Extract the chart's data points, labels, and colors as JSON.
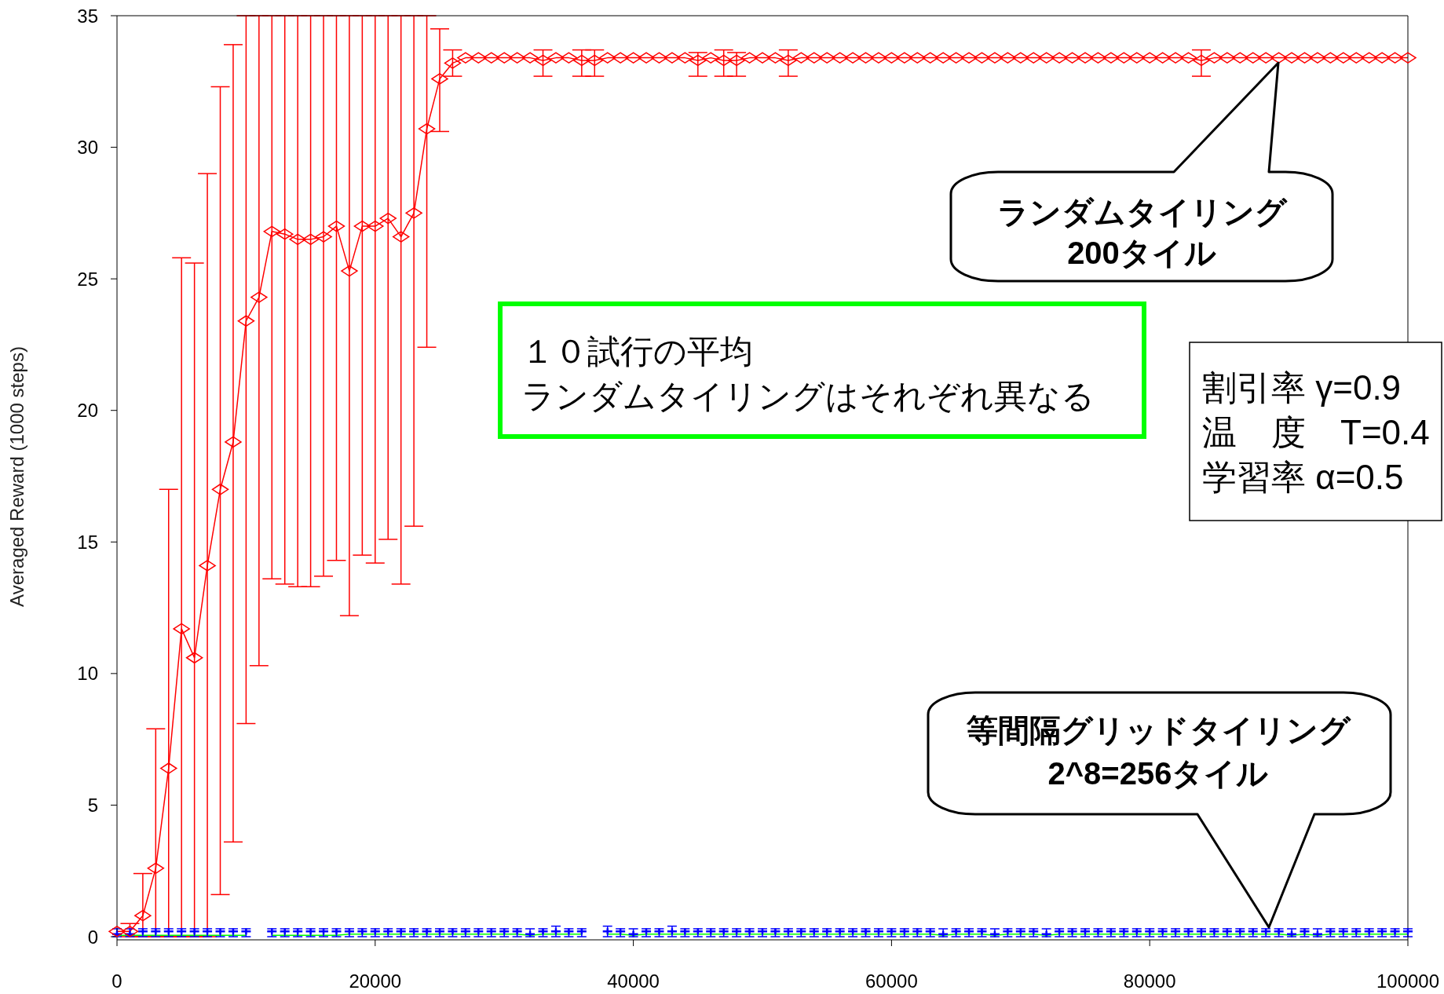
{
  "chart_data": {
    "type": "line",
    "ylabel": "Averaged Reward (1000 steps)",
    "x": [
      0,
      1000,
      2000,
      3000,
      4000,
      5000,
      6000,
      7000,
      8000,
      9000,
      10000,
      11000,
      12000,
      13000,
      14000,
      15000,
      16000,
      17000,
      18000,
      19000,
      20000,
      21000,
      22000,
      23000,
      24000,
      25000,
      26000,
      27000,
      28000,
      29000,
      30000,
      31000,
      32000,
      33000,
      34000,
      35000,
      36000,
      37000,
      38000,
      39000,
      40000,
      41000,
      42000,
      43000,
      44000,
      45000,
      46000,
      47000,
      48000,
      49000,
      50000,
      51000,
      52000,
      53000,
      54000,
      55000,
      56000,
      57000,
      58000,
      59000,
      60000,
      61000,
      62000,
      63000,
      64000,
      65000,
      66000,
      67000,
      68000,
      69000,
      70000,
      71000,
      72000,
      73000,
      74000,
      75000,
      76000,
      77000,
      78000,
      79000,
      80000,
      81000,
      82000,
      83000,
      84000,
      85000,
      86000,
      87000,
      88000,
      89000,
      90000,
      91000,
      92000,
      93000,
      94000,
      95000,
      96000,
      97000,
      98000,
      99000,
      100000
    ],
    "xlim": [
      0,
      100000
    ],
    "xticks": [
      0,
      20000,
      40000,
      60000,
      80000,
      100000
    ],
    "ylim": [
      0,
      35
    ],
    "yticks": [
      0,
      5,
      10,
      15,
      20,
      25,
      30,
      35
    ],
    "series": [
      {
        "color": "#ff0000",
        "marker": "diamond",
        "values": [
          0.2,
          0.2,
          0.8,
          2.6,
          6.4,
          11.7,
          10.6,
          14.1,
          17,
          18.8,
          23.4,
          24.3,
          26.8,
          26.7,
          26.5,
          26.5,
          26.6,
          27,
          25.3,
          27,
          27,
          27.3,
          26.6,
          27.5,
          30.7,
          32.6,
          33.2,
          33.4,
          33.4,
          33.4,
          33.4,
          33.4,
          33.4,
          33.3,
          33.4,
          33.4,
          33.3,
          33.3,
          33.4,
          33.4,
          33.4,
          33.4,
          33.4,
          33.4,
          33.4,
          33.3,
          33.4,
          33.3,
          33.3,
          33.4,
          33.4,
          33.4,
          33.3,
          33.4,
          33.4,
          33.4,
          33.4,
          33.4,
          33.4,
          33.4,
          33.4,
          33.4,
          33.4,
          33.4,
          33.4,
          33.4,
          33.4,
          33.4,
          33.4,
          33.4,
          33.4,
          33.4,
          33.4,
          33.4,
          33.4,
          33.4,
          33.4,
          33.4,
          33.4,
          33.4,
          33.4,
          33.4,
          33.4,
          33.4,
          33.3,
          33.4,
          33.4,
          33.4,
          33.4,
          33.4,
          33.4,
          33.4,
          33.4,
          33.4,
          33.4,
          33.4,
          33.4,
          33.4,
          33.4,
          33.4,
          33.4
        ],
        "errors": [
          null,
          [
            0,
            0.5
          ],
          [
            0,
            2.4
          ],
          [
            0,
            7.9
          ],
          [
            0,
            17
          ],
          [
            0,
            25.8
          ],
          [
            0,
            25.6
          ],
          [
            0,
            29
          ],
          [
            1.6,
            32.3
          ],
          [
            3.6,
            33.9
          ],
          [
            8.1,
            35
          ],
          [
            10.3,
            35
          ],
          [
            13.6,
            35
          ],
          [
            13.4,
            35
          ],
          [
            13.3,
            35
          ],
          [
            13.3,
            35
          ],
          [
            13.7,
            35
          ],
          [
            14.3,
            35
          ],
          [
            12.2,
            35
          ],
          [
            14.5,
            35
          ],
          [
            14.2,
            35
          ],
          [
            15.1,
            35
          ],
          [
            13.4,
            35
          ],
          [
            15.6,
            35
          ],
          [
            22.4,
            35
          ],
          [
            30.6,
            34.5
          ],
          [
            32.7,
            33.7
          ],
          null,
          null,
          null,
          null,
          null,
          null,
          [
            32.7,
            33.7
          ],
          null,
          null,
          [
            32.7,
            33.7
          ],
          [
            32.7,
            33.7
          ],
          null,
          null,
          null,
          null,
          null,
          null,
          null,
          [
            32.7,
            33.6
          ],
          null,
          [
            32.7,
            33.7
          ],
          [
            32.7,
            33.6
          ],
          null,
          null,
          null,
          [
            32.7,
            33.7
          ],
          null,
          null,
          null,
          null,
          null,
          null,
          null,
          null,
          null,
          null,
          null,
          null,
          null,
          null,
          null,
          null,
          null,
          null,
          null,
          null,
          null,
          null,
          null,
          null,
          null,
          null,
          null,
          null,
          null,
          null,
          null,
          [
            32.7,
            33.7
          ],
          null,
          null,
          null,
          null,
          null,
          null,
          null,
          null,
          null,
          null,
          null,
          null,
          null,
          null,
          null,
          null
        ]
      },
      {
        "color": "#00ff00",
        "marker": "none",
        "values": [
          0.05,
          0.05,
          0.05,
          0.05,
          0.05,
          0.05,
          0.05,
          0.05,
          0.05,
          0.05,
          0.05,
          null,
          0.05,
          0.05,
          0.05,
          0.05,
          0.05,
          0.05,
          0.1,
          0.1,
          0.1,
          0.1,
          0.1,
          0.1,
          0.1,
          0.1,
          0.1,
          0.1,
          0.1,
          0.1,
          0.1,
          0.1,
          0.05,
          0.1,
          0.1,
          0.1,
          0.1,
          null,
          0.1,
          0.1,
          0.05,
          0.1,
          0.1,
          0.1,
          0.1,
          0.1,
          0.1,
          0.1,
          0.1,
          0.1,
          0.1,
          0.1,
          0.1,
          0.1,
          0.1,
          0.1,
          0.1,
          0.1,
          0.1,
          0.1,
          0.1,
          0.1,
          0.1,
          0.1,
          0.05,
          0.1,
          0.1,
          0.1,
          0.05,
          0.1,
          0.1,
          0.1,
          0.05,
          0.1,
          0.1,
          0.1,
          0.1,
          0.1,
          0.1,
          0.1,
          0.1,
          0.1,
          0.1,
          0.1,
          0.1,
          0.1,
          0.1,
          0.1,
          0.1,
          0.1,
          0.1,
          0.05,
          0.1,
          0.05,
          0.1,
          0.1,
          0.1,
          0.1,
          0.1,
          0.1,
          0.1
        ]
      },
      {
        "type": "scatter",
        "color": "#0000ff",
        "marker": "cross",
        "values": [
          0.1,
          0.1,
          0.2,
          0.2,
          0.2,
          0.2,
          0.2,
          0.2,
          0.2,
          0.2,
          0.2,
          null,
          0.2,
          0.2,
          0.2,
          0.2,
          0.2,
          0.2,
          0.2,
          0.2,
          0.2,
          0.2,
          0.2,
          0.2,
          0.2,
          0.2,
          0.2,
          0.2,
          0.2,
          0.2,
          0.2,
          0.2,
          0.1,
          0.2,
          0.2,
          0.2,
          0.2,
          null,
          0.2,
          0.2,
          0.1,
          0.2,
          0.2,
          0.2,
          0.2,
          0.2,
          0.2,
          0.2,
          0.2,
          0.2,
          0.2,
          0.2,
          0.2,
          0.2,
          0.2,
          0.2,
          0.2,
          0.2,
          0.2,
          0.2,
          0.2,
          0.2,
          0.2,
          0.2,
          0.1,
          0.2,
          0.2,
          0.2,
          0.1,
          0.2,
          0.2,
          0.2,
          0.1,
          0.2,
          0.2,
          0.2,
          0.2,
          0.2,
          0.2,
          0.2,
          0.2,
          0.2,
          0.2,
          0.2,
          0.2,
          0.2,
          0.2,
          0.2,
          0.2,
          0.2,
          0.2,
          0.1,
          0.2,
          0.1,
          0.2,
          0.2,
          0.2,
          0.2,
          0.2,
          0.2,
          0.2
        ],
        "errors": [
          [
            0,
            0.3
          ],
          [
            0,
            0.3
          ],
          [
            0,
            0.3
          ],
          [
            0,
            0.3
          ],
          [
            0,
            0.3
          ],
          [
            0,
            0.3
          ],
          [
            0,
            0.3
          ],
          [
            0,
            0.3
          ],
          [
            0,
            0.3
          ],
          [
            0,
            0.3
          ],
          [
            0,
            0.3
          ],
          null,
          [
            0,
            0.3
          ],
          [
            0,
            0.3
          ],
          [
            0,
            0.3
          ],
          [
            0,
            0.3
          ],
          [
            0,
            0.3
          ],
          [
            0,
            0.3
          ],
          [
            0,
            0.3
          ],
          [
            0,
            0.3
          ],
          [
            0,
            0.3
          ],
          [
            0,
            0.3
          ],
          [
            0,
            0.3
          ],
          [
            0,
            0.3
          ],
          [
            0,
            0.3
          ],
          [
            0,
            0.3
          ],
          [
            0,
            0.3
          ],
          [
            0,
            0.3
          ],
          [
            0,
            0.3
          ],
          [
            0,
            0.3
          ],
          [
            0,
            0.3
          ],
          [
            0,
            0.3
          ],
          [
            0,
            0.3
          ],
          [
            0,
            0.3
          ],
          [
            0,
            0.4
          ],
          [
            0,
            0.3
          ],
          [
            0,
            0.3
          ],
          null,
          [
            0,
            0.4
          ],
          [
            0,
            0.3
          ],
          [
            0,
            0.3
          ],
          [
            0,
            0.3
          ],
          [
            0,
            0.3
          ],
          [
            0,
            0.4
          ],
          [
            0,
            0.3
          ],
          [
            0,
            0.3
          ],
          [
            0,
            0.3
          ],
          [
            0,
            0.3
          ],
          [
            0,
            0.3
          ],
          [
            0,
            0.3
          ],
          [
            0,
            0.3
          ],
          [
            0,
            0.3
          ],
          [
            0,
            0.3
          ],
          [
            0,
            0.3
          ],
          [
            0,
            0.3
          ],
          [
            0,
            0.3
          ],
          [
            0,
            0.3
          ],
          [
            0,
            0.3
          ],
          [
            0,
            0.3
          ],
          [
            0,
            0.3
          ],
          [
            0,
            0.3
          ],
          [
            0,
            0.3
          ],
          [
            0,
            0.3
          ],
          [
            0,
            0.3
          ],
          [
            0,
            0.3
          ],
          [
            0,
            0.3
          ],
          [
            0,
            0.3
          ],
          [
            0,
            0.3
          ],
          [
            0,
            0.3
          ],
          [
            0,
            0.3
          ],
          [
            0,
            0.3
          ],
          [
            0,
            0.3
          ],
          [
            0,
            0.3
          ],
          [
            0,
            0.3
          ],
          [
            0,
            0.3
          ],
          [
            0,
            0.3
          ],
          [
            0,
            0.3
          ],
          [
            0,
            0.3
          ],
          [
            0,
            0.3
          ],
          [
            0,
            0.3
          ],
          [
            0,
            0.3
          ],
          [
            0,
            0.3
          ],
          [
            0,
            0.3
          ],
          [
            0,
            0.3
          ],
          [
            0,
            0.3
          ],
          [
            0,
            0.3
          ],
          [
            0,
            0.3
          ],
          [
            0,
            0.3
          ],
          [
            0,
            0.3
          ],
          [
            0,
            0.3
          ],
          [
            0,
            0.3
          ],
          [
            0,
            0.3
          ],
          [
            0,
            0.3
          ],
          [
            0,
            0.3
          ],
          [
            0,
            0.3
          ],
          [
            0,
            0.3
          ],
          [
            0,
            0.3
          ],
          [
            0,
            0.3
          ],
          [
            0,
            0.3
          ],
          [
            0,
            0.3
          ],
          [
            0,
            0.3
          ]
        ]
      }
    ],
    "annotations": [
      "ランダムタイリング\n200タイル",
      "１０試行の平均",
      "ランダムタイリングはそれぞれ異なる",
      "割引率 γ=0.9\n温　度　T=0.4\n学習率 α=0.5",
      "等間隔グリッドタイリング\n2^8=256タイル"
    ]
  }
}
